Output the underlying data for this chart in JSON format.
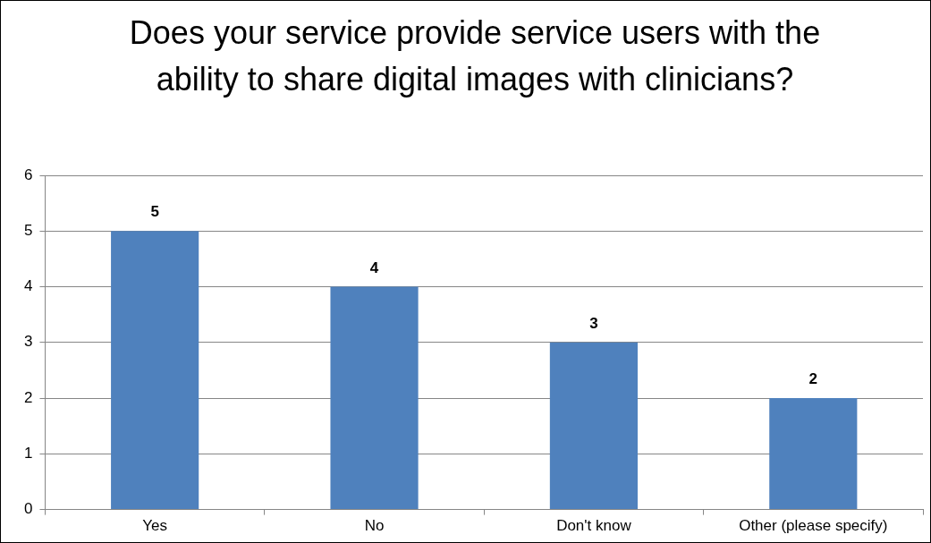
{
  "chart_data": {
    "type": "bar",
    "title": "Does your service provide service users with the ability to share digital images with clinicians?",
    "categories": [
      "Yes",
      "No",
      "Don't know",
      "Other (please specify)"
    ],
    "values": [
      5,
      4,
      3,
      2
    ],
    "color": "#4f81bd",
    "ylim": [
      0,
      6
    ],
    "yticks": [
      0,
      1,
      2,
      3,
      4,
      5,
      6
    ],
    "grid": "y",
    "data_labels": true,
    "legend": false
  }
}
